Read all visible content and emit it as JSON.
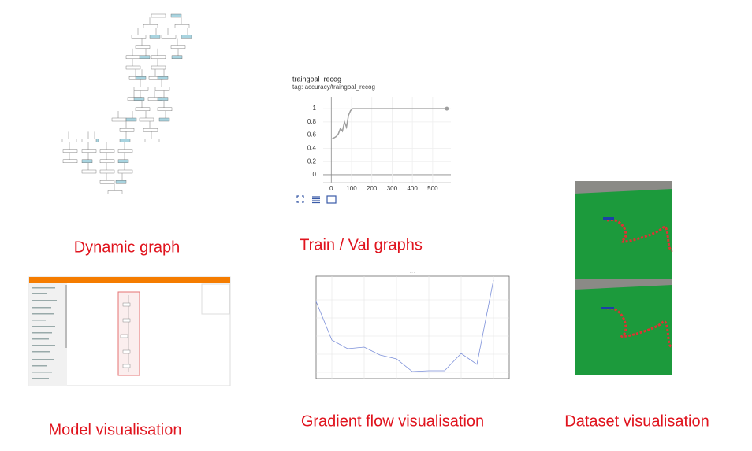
{
  "panels": [
    {
      "caption": "Dynamic graph"
    },
    {
      "caption": "Train / Val graphs"
    },
    {
      "caption": "Model visualisation"
    },
    {
      "caption": "Gradient flow visualisation"
    },
    {
      "caption": "Dataset visualisation"
    }
  ],
  "chart_data": {
    "type": "line",
    "title": "traingoal_recog",
    "subtitle": "tag: accuracy/traingoal_recog",
    "x": [
      5,
      15,
      25,
      35,
      45,
      55,
      65,
      75,
      85,
      95,
      105,
      200,
      300,
      400,
      500,
      570
    ],
    "series": [
      {
        "name": "accuracy",
        "color": "#9e9e9e",
        "values": [
          0.55,
          0.56,
          0.58,
          0.62,
          0.7,
          0.66,
          0.8,
          0.72,
          0.9,
          0.97,
          1,
          1,
          1,
          1,
          1,
          1
        ]
      }
    ],
    "xlim": [
      -40,
      590
    ],
    "ylim": [
      -0.12,
      1.18
    ],
    "xticks": [
      0,
      100,
      200,
      300,
      400,
      500
    ],
    "yticks": [
      0,
      0.2,
      0.4,
      0.6,
      0.8,
      1
    ],
    "grid": true
  }
}
